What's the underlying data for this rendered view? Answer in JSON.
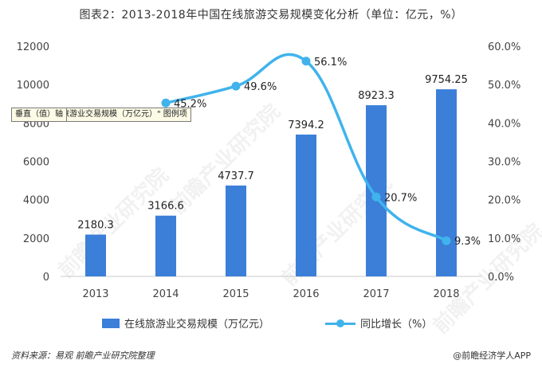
{
  "title": "图表2：2013-2018年中国在线旅游交易规模变化分析（单位：亿元，%）",
  "tooltip": {
    "line1": "垂直（值）轴",
    "line2": "旅游业交易规模（万亿元）\" 图例项"
  },
  "legend": {
    "bar_label": "在线旅游业交易规模（万亿元）",
    "line_label": "同比增长（%）"
  },
  "footer": {
    "source": "资料来源：易观 前瞻产业研究院整理",
    "brand": "@前瞻经济学人APP"
  },
  "watermark": "前瞻产业研究院",
  "colors": {
    "bar": "#3b7fd9",
    "line": "#40b3ec",
    "axis": "#c8c8c8",
    "text": "#333333"
  },
  "chart_data": {
    "type": "bar",
    "title": "图表2：2013-2018年中国在线旅游交易规模变化分析（单位：亿元，%）",
    "categories": [
      "2013",
      "2014",
      "2015",
      "2016",
      "2017",
      "2018"
    ],
    "y_left": {
      "min": 0,
      "max": 12000,
      "ticks": [
        "0",
        "2000",
        "4000",
        "6000",
        "8000",
        "10000",
        "12000"
      ]
    },
    "y_right": {
      "min": 0,
      "max": 60,
      "ticks": [
        "0.0%",
        "10.0%",
        "20.0%",
        "30.0%",
        "40.0%",
        "50.0%",
        "60.0%"
      ]
    },
    "series": [
      {
        "name": "在线旅游业交易规模（万亿元）",
        "type": "bar",
        "axis": "left",
        "values": [
          2180.3,
          3166.6,
          4737.7,
          7394.2,
          8923.3,
          9754.25
        ],
        "labels": [
          "2180.3",
          "3166.6",
          "4737.7",
          "7394.2",
          "8923.3",
          "9754.25"
        ]
      },
      {
        "name": "同比增长（%）",
        "type": "line",
        "axis": "right",
        "smooth": true,
        "x": [
          "2014",
          "2015",
          "2016",
          "2017",
          "2018"
        ],
        "values": [
          45.2,
          49.6,
          56.1,
          20.7,
          9.3
        ],
        "labels": [
          "45.2%",
          "49.6%",
          "56.1%",
          "20.7%",
          "9.3%"
        ]
      }
    ],
    "grid": false,
    "legend_position": "bottom"
  }
}
